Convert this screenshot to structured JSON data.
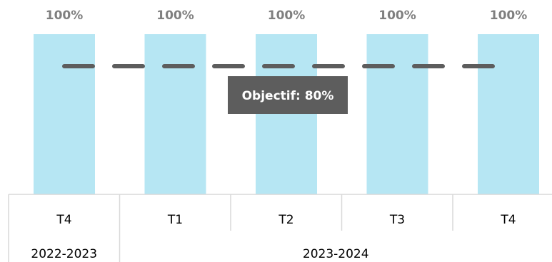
{
  "colors": {
    "bar": "#b6e6f3",
    "target_line": "#5d5d5d",
    "target_box": "#5d5d5d",
    "target_text": "#ffffff",
    "value_label": "#7f7f7f",
    "axis": "#d9d9d9"
  },
  "chart_data": {
    "type": "bar",
    "categories": [
      "T4",
      "T1",
      "T2",
      "T3",
      "T4"
    ],
    "groups": [
      {
        "label": "2022-2023",
        "categories": [
          "T4"
        ]
      },
      {
        "label": "2023-2024",
        "categories": [
          "T1",
          "T2",
          "T3",
          "T4"
        ]
      }
    ],
    "series": [
      {
        "values": [
          100,
          100,
          100,
          100,
          100
        ]
      }
    ],
    "value_labels": [
      "100%",
      "100%",
      "100%",
      "100%",
      "100%"
    ],
    "target": {
      "value": 80,
      "label": "Objectif: 80%",
      "style": "dashed"
    },
    "ylim": [
      0,
      100
    ],
    "grid": false,
    "title": "",
    "xlabel": "",
    "ylabel": ""
  }
}
